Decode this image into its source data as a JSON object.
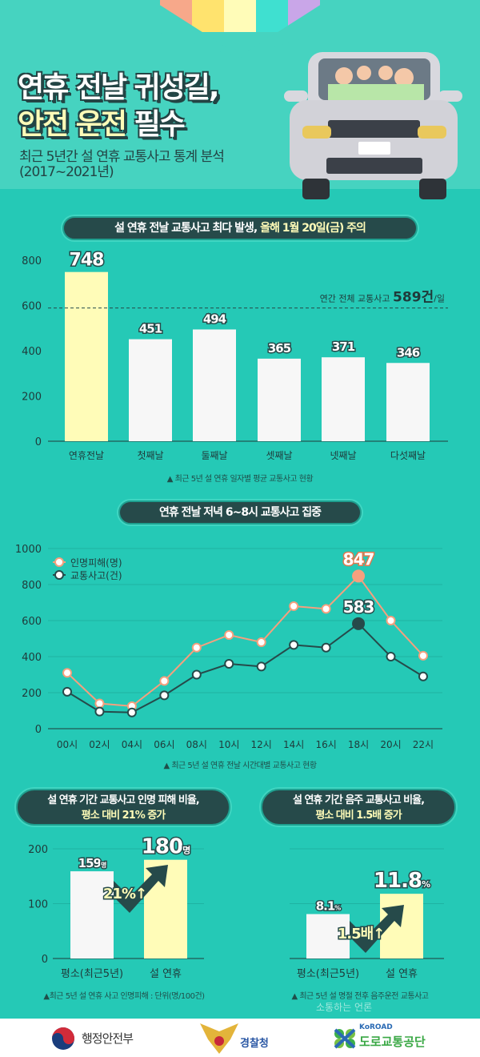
{
  "header": {
    "title_line1": "연휴 전날 귀성길,",
    "title_line2_highlight": "안전 운전",
    "title_line2_rest": "필수",
    "subtitle_line1": "최근 5년간 설 연휴 교통사고 통계 분석",
    "subtitle_line2": "(2017~2021년)",
    "stripe_colors": [
      "#f7a88a",
      "#ffe36e",
      "#fffcb8",
      "#3fe0d0",
      "#c9a6e8"
    ]
  },
  "colors": {
    "background": "#25c9b6",
    "dark": "#264a4a",
    "yellow": "#fffcb8",
    "orange": "#f5a07e",
    "white_bar": "#f7f7f7"
  },
  "sections": {
    "s1_title": "설 연휴 전날 교통사고 최다 발생,",
    "s1_title_highlight": "올해 1월 20일(금)",
    "s1_title_end": "주의",
    "s1_note": "▲ 최근 5년 설 연휴 일자별 평균 교통사고 현황",
    "s2_title": "연휴 전날 저녁 6~8시 교통사고 집중",
    "s2_note": "▲ 최근 5년 설 연휴 전날 시간대별 교통사고 현황",
    "s3_title_line1": "설 연휴 기간 교통사고 인명 피해 비율,",
    "s3_title_line2": "평소 대비 21% 증가",
    "s3_note": "▲최근 5년 설 연휴 사고 인명피해 : 단위(명/100건)",
    "s4_title_line1": "설 연휴 기간 음주 교통사고 비율,",
    "s4_title_line2": "평소 대비 1.5배 증가",
    "s4_note": "▲ 최근 5년 설 명절 전후 음주운전 교통사고"
  },
  "chart_data": [
    {
      "type": "bar",
      "categories": [
        "연휴전날",
        "첫째날",
        "둘째날",
        "셋째날",
        "넷째날",
        "다섯째날"
      ],
      "values": [
        748,
        451,
        494,
        365,
        371,
        346
      ],
      "ylim": [
        0,
        800
      ],
      "yticks": [
        0,
        200,
        400,
        600,
        800
      ],
      "highlight_index": 0,
      "reference_line": {
        "value": 589,
        "label_prefix": "연간 전체 교통사고",
        "label_value": "589건",
        "label_suffix": "/일"
      }
    },
    {
      "type": "line",
      "categories": [
        "00시",
        "02시",
        "04시",
        "06시",
        "08시",
        "10시",
        "12시",
        "14시",
        "16시",
        "18시",
        "20시",
        "22시"
      ],
      "ylim": [
        0,
        1000
      ],
      "yticks": [
        0,
        200,
        400,
        600,
        800,
        1000
      ],
      "legend": "top-left",
      "series": [
        {
          "name": "인명피해(명)",
          "color": "#f5a07e",
          "values": [
            310,
            140,
            125,
            265,
            450,
            520,
            480,
            680,
            665,
            847,
            600,
            405
          ],
          "labeled_value": "847"
        },
        {
          "name": "교통사고(건)",
          "color": "#264a4a",
          "values": [
            205,
            95,
            90,
            185,
            300,
            360,
            345,
            465,
            450,
            583,
            400,
            290
          ],
          "labeled_value": "583"
        }
      ]
    },
    {
      "type": "bar",
      "categories": [
        "평소(최근5년)",
        "설 연휴"
      ],
      "values": [
        159,
        180
      ],
      "labels": [
        "159",
        "180"
      ],
      "unit": "명",
      "ylim": [
        0,
        200
      ],
      "yticks": [
        0,
        100,
        200
      ],
      "change_label": "21%"
    },
    {
      "type": "bar",
      "categories": [
        "평소(최근5년)",
        "설 연휴"
      ],
      "values": [
        8.1,
        11.8
      ],
      "labels": [
        "8.1",
        "11.8"
      ],
      "unit": "%",
      "ylim": [
        0,
        20
      ],
      "change_label": "1.5배"
    }
  ],
  "footer": {
    "logo1": "행정안전부",
    "logo2": "경찰청",
    "logo3_en": "KoROAD",
    "logo3": "도로교통공단",
    "watermark": "소통하는 언론"
  }
}
